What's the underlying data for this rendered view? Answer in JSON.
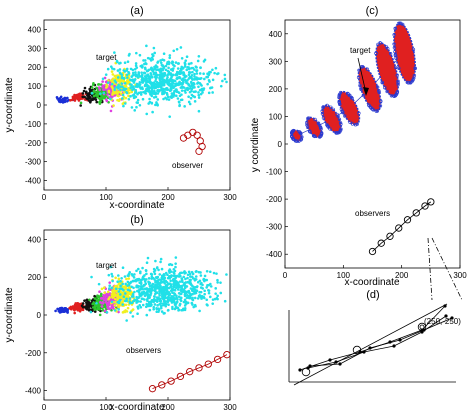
{
  "chart_data": [
    {
      "panel": "(a)",
      "type": "scatter",
      "xlabel": "x-coordinate",
      "ylabel": "y-coordinate",
      "xlim": [
        0,
        300
      ],
      "ylim": [
        -450,
        450
      ],
      "xticks": [
        0,
        100,
        200,
        300
      ],
      "yticks": [
        400,
        300,
        200,
        100,
        0,
        -100,
        -200,
        -300,
        -400
      ],
      "grid": false,
      "annotations": [
        "target",
        "observer"
      ],
      "clusters": [
        {
          "color": "#1a2fd6",
          "cx": 30,
          "cy": 25,
          "rx": 8,
          "ry": 10
        },
        {
          "color": "#e02020",
          "cx": 55,
          "cy": 40,
          "rx": 12,
          "ry": 18
        },
        {
          "color": "#111111",
          "cx": 80,
          "cy": 55,
          "rx": 14,
          "ry": 30
        },
        {
          "color": "#2ec62e",
          "cx": 95,
          "cy": 65,
          "rx": 15,
          "ry": 40
        },
        {
          "color": "#e040e0",
          "cx": 110,
          "cy": 80,
          "rx": 16,
          "ry": 50
        },
        {
          "color": "#f0f020",
          "cx": 125,
          "cy": 105,
          "rx": 18,
          "ry": 75
        },
        {
          "color": "#20e0e8",
          "cx": 190,
          "cy": 130,
          "rx": 70,
          "ry": 110
        }
      ],
      "observer_points": [
        [
          225,
          -175
        ],
        [
          232,
          -160
        ],
        [
          240,
          -145
        ],
        [
          247,
          -160
        ],
        [
          252,
          -190
        ],
        [
          255,
          -220
        ],
        [
          250,
          -245
        ]
      ]
    },
    {
      "panel": "(b)",
      "type": "scatter",
      "xlabel": "x-coordinate",
      "ylabel": "y-coordinate",
      "xlim": [
        0,
        300
      ],
      "ylim": [
        -450,
        450
      ],
      "xticks": [
        0,
        100,
        200,
        300
      ],
      "yticks": [
        400,
        200,
        0,
        -200,
        -400
      ],
      "grid": false,
      "annotations": [
        "target",
        "observers"
      ],
      "clusters": [
        {
          "color": "#1a2fd6",
          "cx": 30,
          "cy": 25,
          "rx": 8,
          "ry": 10
        },
        {
          "color": "#e02020",
          "cx": 55,
          "cy": 40,
          "rx": 12,
          "ry": 18
        },
        {
          "color": "#111111",
          "cx": 80,
          "cy": 55,
          "rx": 14,
          "ry": 30
        },
        {
          "color": "#2ec62e",
          "cx": 95,
          "cy": 65,
          "rx": 15,
          "ry": 40
        },
        {
          "color": "#e040e0",
          "cx": 110,
          "cy": 80,
          "rx": 16,
          "ry": 50
        },
        {
          "color": "#f0f020",
          "cx": 125,
          "cy": 105,
          "rx": 18,
          "ry": 75
        },
        {
          "color": "#20e0e8",
          "cx": 190,
          "cy": 130,
          "rx": 70,
          "ry": 110
        }
      ],
      "observer_points": [
        [
          175,
          -390
        ],
        [
          190,
          -370
        ],
        [
          205,
          -350
        ],
        [
          220,
          -325
        ],
        [
          235,
          -300
        ],
        [
          250,
          -280
        ],
        [
          265,
          -260
        ],
        [
          280,
          -235
        ],
        [
          295,
          -210
        ]
      ]
    },
    {
      "panel": "(c)",
      "type": "scatter",
      "xlabel": "x-coordinate",
      "ylabel": "y coordinate",
      "xlim": [
        0,
        300
      ],
      "ylim": [
        -450,
        450
      ],
      "xticks": [
        0,
        100,
        200,
        300
      ],
      "yticks": [
        400,
        300,
        200,
        100,
        0,
        -100,
        -200,
        -300,
        -400
      ],
      "grid": false,
      "annotations": [
        "target",
        "observers"
      ],
      "target_ellipses": [
        {
          "cx": 20,
          "cy": 30,
          "rx": 8,
          "ry": 22,
          "angle": -35
        },
        {
          "cx": 50,
          "cy": 60,
          "rx": 10,
          "ry": 40,
          "angle": -30
        },
        {
          "cx": 80,
          "cy": 90,
          "rx": 12,
          "ry": 55,
          "angle": -28
        },
        {
          "cx": 110,
          "cy": 130,
          "rx": 13,
          "ry": 65,
          "angle": -25
        },
        {
          "cx": 145,
          "cy": 200,
          "rx": 14,
          "ry": 85,
          "angle": -20
        },
        {
          "cx": 175,
          "cy": 270,
          "rx": 15,
          "ry": 100,
          "angle": -15
        },
        {
          "cx": 205,
          "cy": 330,
          "rx": 16,
          "ry": 110,
          "angle": -10
        }
      ],
      "observer_points": [
        [
          150,
          -390
        ],
        [
          165,
          -360
        ],
        [
          180,
          -335
        ],
        [
          195,
          -305
        ],
        [
          210,
          -275
        ],
        [
          225,
          -250
        ],
        [
          240,
          -225
        ],
        [
          250,
          -210
        ]
      ]
    },
    {
      "panel": "(d)",
      "type": "line",
      "annotations": [
        "(250,-250)"
      ]
    }
  ]
}
